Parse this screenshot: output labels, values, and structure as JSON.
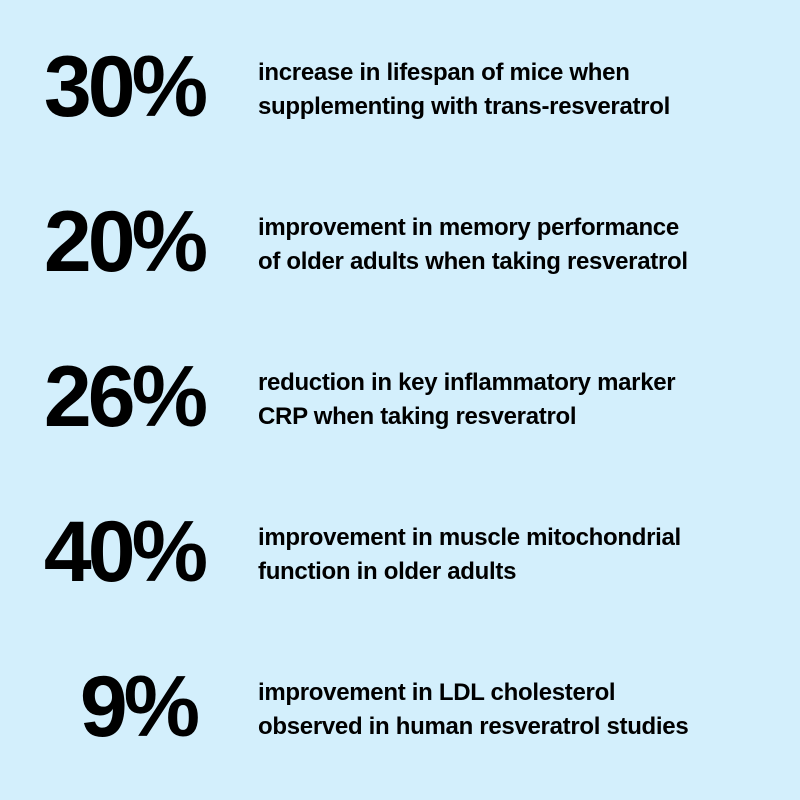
{
  "background_color": "#d3effc",
  "text_color": "#000000",
  "stats": [
    {
      "value": "30%",
      "description": "increase in lifespan of mice when\nsupplementing with trans-resveratrol"
    },
    {
      "value": "20%",
      "description": "improvement in memory performance\nof older adults when taking resveratrol"
    },
    {
      "value": "26%",
      "description": "reduction in key inflammatory marker\nCRP when taking resveratrol"
    },
    {
      "value": "40%",
      "description": "improvement in muscle mitochondrial\nfunction in older adults"
    },
    {
      "value": "9%",
      "description": "improvement in LDL cholesterol\nobserved in human resveratrol studies"
    }
  ]
}
